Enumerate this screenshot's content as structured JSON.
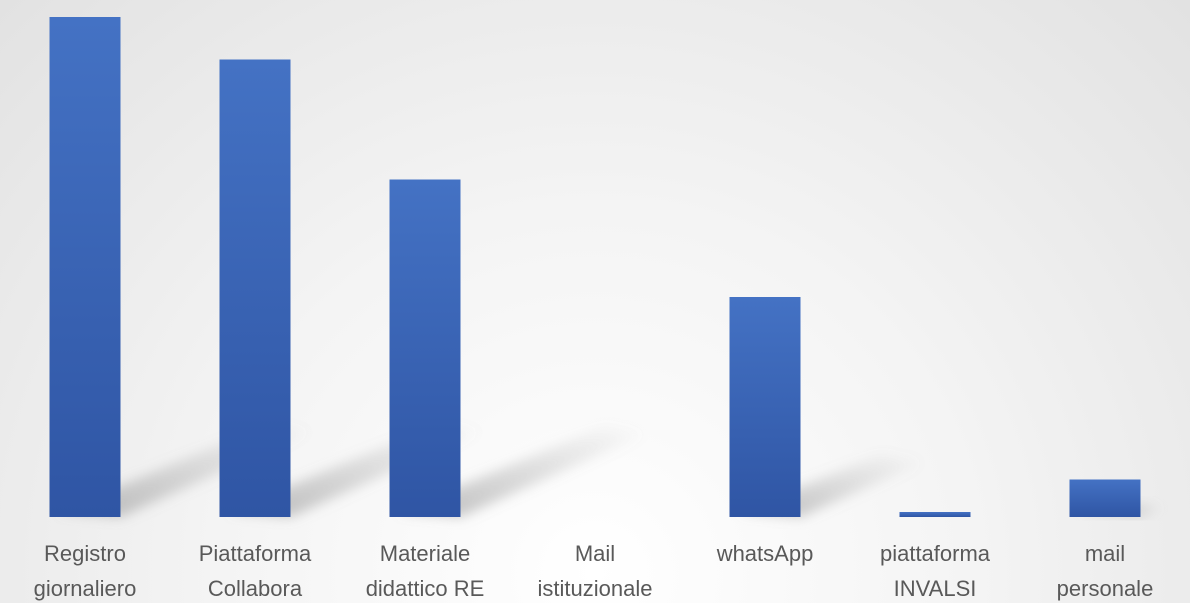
{
  "chart_data": {
    "type": "bar",
    "categories": [
      [
        "Registro",
        "giornaliero"
      ],
      [
        "Piattaforma",
        "Collabora"
      ],
      [
        "Materiale",
        "didattico RE"
      ],
      [
        "Mail",
        "istituzionale"
      ],
      [
        "whatsApp"
      ],
      [
        "piattaforma",
        "INVALSI"
      ],
      [
        "mail",
        "personale"
      ]
    ],
    "values": [
      100,
      91.5,
      67.5,
      0,
      44,
      1,
      7.5
    ],
    "ylim": [
      0,
      100
    ],
    "title": "",
    "xlabel": "",
    "ylabel": "",
    "grid": false,
    "legend": "none",
    "colors": {
      "bar_top": "#4472c4",
      "bar_bottom": "#2f55a4",
      "label": "#595959",
      "shadow": "#8c8c8c"
    }
  }
}
